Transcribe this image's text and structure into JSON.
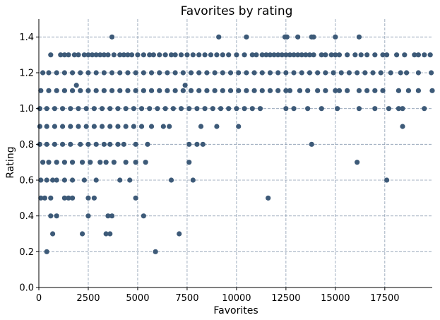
{
  "chart_data": {
    "type": "scatter",
    "title": "Favorites by rating",
    "xlabel": "Favorites",
    "ylabel": "Rating",
    "xlim": [
      0,
      19900
    ],
    "ylim": [
      0,
      1.5
    ],
    "x_ticks": [
      0,
      2500,
      5000,
      7500,
      10000,
      12500,
      15000,
      17500
    ],
    "x_tick_labels": [
      "0",
      "2500",
      "5000",
      "7500",
      "10000",
      "12500",
      "15000",
      "17500"
    ],
    "y_ticks": [
      0.0,
      0.2,
      0.4,
      0.6,
      0.8,
      1.0,
      1.2,
      1.4
    ],
    "y_tick_labels": [
      "0.0",
      "0.2",
      "0.4",
      "0.6",
      "0.8",
      "1.0",
      "1.2",
      "1.4"
    ],
    "grid": true,
    "grid_style": "dashed",
    "marker_color": "#3d5a78",
    "grid_color": "#8a9bb0",
    "series": [
      {
        "points": [
          [
            3700,
            1.4
          ],
          [
            9100,
            1.4
          ],
          [
            10500,
            1.4
          ],
          [
            12450,
            1.4
          ],
          [
            12550,
            1.4
          ],
          [
            13100,
            1.4
          ],
          [
            13800,
            1.4
          ],
          [
            13900,
            1.4
          ],
          [
            15000,
            1.4
          ],
          [
            16200,
            1.4
          ],
          [
            600,
            1.3
          ],
          [
            1100,
            1.3
          ],
          [
            1300,
            1.3
          ],
          [
            1500,
            1.3
          ],
          [
            1800,
            1.3
          ],
          [
            2000,
            1.3
          ],
          [
            2300,
            1.3
          ],
          [
            2500,
            1.3
          ],
          [
            2700,
            1.3
          ],
          [
            2900,
            1.3
          ],
          [
            3100,
            1.3
          ],
          [
            3300,
            1.3
          ],
          [
            3500,
            1.3
          ],
          [
            3800,
            1.3
          ],
          [
            4100,
            1.3
          ],
          [
            4300,
            1.3
          ],
          [
            4500,
            1.3
          ],
          [
            4700,
            1.3
          ],
          [
            5000,
            1.3
          ],
          [
            5300,
            1.3
          ],
          [
            5600,
            1.3
          ],
          [
            5800,
            1.3
          ],
          [
            6100,
            1.3
          ],
          [
            6400,
            1.3
          ],
          [
            6700,
            1.3
          ],
          [
            6900,
            1.3
          ],
          [
            7200,
            1.3
          ],
          [
            7500,
            1.3
          ],
          [
            7800,
            1.3
          ],
          [
            8100,
            1.3
          ],
          [
            8400,
            1.3
          ],
          [
            8700,
            1.3
          ],
          [
            9000,
            1.3
          ],
          [
            9300,
            1.3
          ],
          [
            9600,
            1.3
          ],
          [
            10000,
            1.3
          ],
          [
            10400,
            1.3
          ],
          [
            10800,
            1.3
          ],
          [
            11000,
            1.3
          ],
          [
            11300,
            1.3
          ],
          [
            11500,
            1.3
          ],
          [
            11700,
            1.3
          ],
          [
            11900,
            1.3
          ],
          [
            12100,
            1.3
          ],
          [
            12300,
            1.3
          ],
          [
            12500,
            1.3
          ],
          [
            12700,
            1.3
          ],
          [
            12900,
            1.3
          ],
          [
            13100,
            1.3
          ],
          [
            13300,
            1.3
          ],
          [
            13500,
            1.3
          ],
          [
            13700,
            1.3
          ],
          [
            13900,
            1.3
          ],
          [
            14300,
            1.3
          ],
          [
            14500,
            1.3
          ],
          [
            14800,
            1.3
          ],
          [
            15000,
            1.3
          ],
          [
            15200,
            1.3
          ],
          [
            15600,
            1.3
          ],
          [
            16000,
            1.3
          ],
          [
            16300,
            1.3
          ],
          [
            16600,
            1.3
          ],
          [
            17000,
            1.3
          ],
          [
            17400,
            1.3
          ],
          [
            17600,
            1.3
          ],
          [
            18100,
            1.3
          ],
          [
            18500,
            1.3
          ],
          [
            19000,
            1.3
          ],
          [
            19200,
            1.3
          ],
          [
            19500,
            1.3
          ],
          [
            19800,
            1.3
          ],
          [
            200,
            1.2
          ],
          [
            500,
            1.2
          ],
          [
            900,
            1.2
          ],
          [
            1300,
            1.2
          ],
          [
            1700,
            1.2
          ],
          [
            2100,
            1.2
          ],
          [
            2500,
            1.2
          ],
          [
            2900,
            1.2
          ],
          [
            3300,
            1.2
          ],
          [
            3700,
            1.2
          ],
          [
            4100,
            1.2
          ],
          [
            4500,
            1.2
          ],
          [
            4900,
            1.2
          ],
          [
            5300,
            1.2
          ],
          [
            5700,
            1.2
          ],
          [
            6100,
            1.2
          ],
          [
            6500,
            1.2
          ],
          [
            6900,
            1.2
          ],
          [
            7300,
            1.2
          ],
          [
            7700,
            1.2
          ],
          [
            8100,
            1.2
          ],
          [
            8500,
            1.2
          ],
          [
            8900,
            1.2
          ],
          [
            9300,
            1.2
          ],
          [
            9700,
            1.2
          ],
          [
            10100,
            1.2
          ],
          [
            10500,
            1.2
          ],
          [
            10900,
            1.2
          ],
          [
            11300,
            1.2
          ],
          [
            11700,
            1.2
          ],
          [
            12100,
            1.2
          ],
          [
            12500,
            1.2
          ],
          [
            12900,
            1.2
          ],
          [
            13300,
            1.2
          ],
          [
            13700,
            1.2
          ],
          [
            14100,
            1.2
          ],
          [
            14500,
            1.2
          ],
          [
            14900,
            1.2
          ],
          [
            15300,
            1.2
          ],
          [
            15700,
            1.2
          ],
          [
            16100,
            1.2
          ],
          [
            16500,
            1.2
          ],
          [
            16900,
            1.2
          ],
          [
            17300,
            1.2
          ],
          [
            17800,
            1.2
          ],
          [
            18300,
            1.2
          ],
          [
            18600,
            1.2
          ],
          [
            19200,
            1.2
          ],
          [
            19850,
            1.2
          ],
          [
            1900,
            1.13
          ],
          [
            7400,
            1.13
          ],
          [
            100,
            1.1
          ],
          [
            500,
            1.1
          ],
          [
            900,
            1.1
          ],
          [
            1300,
            1.1
          ],
          [
            1700,
            1.1
          ],
          [
            2100,
            1.1
          ],
          [
            2500,
            1.1
          ],
          [
            2900,
            1.1
          ],
          [
            3300,
            1.1
          ],
          [
            3700,
            1.1
          ],
          [
            4100,
            1.1
          ],
          [
            4500,
            1.1
          ],
          [
            4900,
            1.1
          ],
          [
            5300,
            1.1
          ],
          [
            5700,
            1.1
          ],
          [
            6100,
            1.1
          ],
          [
            6500,
            1.1
          ],
          [
            6900,
            1.1
          ],
          [
            7300,
            1.1
          ],
          [
            7700,
            1.1
          ],
          [
            8100,
            1.1
          ],
          [
            8500,
            1.1
          ],
          [
            8900,
            1.1
          ],
          [
            9300,
            1.1
          ],
          [
            9700,
            1.1
          ],
          [
            10100,
            1.1
          ],
          [
            10500,
            1.1
          ],
          [
            10900,
            1.1
          ],
          [
            11300,
            1.1
          ],
          [
            11700,
            1.1
          ],
          [
            12100,
            1.1
          ],
          [
            12500,
            1.1
          ],
          [
            12700,
            1.1
          ],
          [
            13200,
            1.1
          ],
          [
            13600,
            1.1
          ],
          [
            14100,
            1.1
          ],
          [
            14500,
            1.1
          ],
          [
            15000,
            1.1
          ],
          [
            15200,
            1.1
          ],
          [
            15600,
            1.1
          ],
          [
            16200,
            1.1
          ],
          [
            16600,
            1.1
          ],
          [
            17000,
            1.1
          ],
          [
            17400,
            1.1
          ],
          [
            18200,
            1.1
          ],
          [
            18700,
            1.1
          ],
          [
            19200,
            1.1
          ],
          [
            19900,
            1.1
          ],
          [
            50,
            1.0
          ],
          [
            400,
            1.0
          ],
          [
            800,
            1.0
          ],
          [
            1200,
            1.0
          ],
          [
            1600,
            1.0
          ],
          [
            2000,
            1.0
          ],
          [
            2400,
            1.0
          ],
          [
            2800,
            1.0
          ],
          [
            3200,
            1.0
          ],
          [
            3600,
            1.0
          ],
          [
            4000,
            1.0
          ],
          [
            4400,
            1.0
          ],
          [
            4800,
            1.0
          ],
          [
            5200,
            1.0
          ],
          [
            5600,
            1.0
          ],
          [
            6000,
            1.0
          ],
          [
            6400,
            1.0
          ],
          [
            6800,
            1.0
          ],
          [
            7200,
            1.0
          ],
          [
            7600,
            1.0
          ],
          [
            8000,
            1.0
          ],
          [
            8400,
            1.0
          ],
          [
            8800,
            1.0
          ],
          [
            9200,
            1.0
          ],
          [
            9600,
            1.0
          ],
          [
            10000,
            1.0
          ],
          [
            10400,
            1.0
          ],
          [
            10800,
            1.0
          ],
          [
            11200,
            1.0
          ],
          [
            12500,
            1.0
          ],
          [
            12900,
            1.0
          ],
          [
            13600,
            1.0
          ],
          [
            14300,
            1.0
          ],
          [
            15100,
            1.0
          ],
          [
            16200,
            1.0
          ],
          [
            17000,
            1.0
          ],
          [
            17700,
            1.0
          ],
          [
            18200,
            1.0
          ],
          [
            18400,
            1.0
          ],
          [
            19500,
            1.0
          ],
          [
            50,
            0.9
          ],
          [
            400,
            0.9
          ],
          [
            800,
            0.9
          ],
          [
            1200,
            0.9
          ],
          [
            1600,
            0.9
          ],
          [
            2000,
            0.9
          ],
          [
            2400,
            0.9
          ],
          [
            2800,
            0.9
          ],
          [
            3200,
            0.9
          ],
          [
            3600,
            0.9
          ],
          [
            4000,
            0.9
          ],
          [
            4400,
            0.9
          ],
          [
            4800,
            0.9
          ],
          [
            5200,
            0.9
          ],
          [
            5700,
            0.9
          ],
          [
            6300,
            0.9
          ],
          [
            6600,
            0.9
          ],
          [
            8200,
            0.9
          ],
          [
            9000,
            0.9
          ],
          [
            10100,
            0.9
          ],
          [
            18400,
            0.9
          ],
          [
            50,
            0.8
          ],
          [
            400,
            0.8
          ],
          [
            800,
            0.8
          ],
          [
            1200,
            0.8
          ],
          [
            1600,
            0.8
          ],
          [
            2100,
            0.8
          ],
          [
            2500,
            0.8
          ],
          [
            2900,
            0.8
          ],
          [
            3300,
            0.8
          ],
          [
            3600,
            0.8
          ],
          [
            4000,
            0.8
          ],
          [
            4300,
            0.8
          ],
          [
            4900,
            0.8
          ],
          [
            5500,
            0.8
          ],
          [
            7600,
            0.8
          ],
          [
            8000,
            0.8
          ],
          [
            8300,
            0.8
          ],
          [
            13800,
            0.8
          ],
          [
            200,
            0.7
          ],
          [
            500,
            0.7
          ],
          [
            900,
            0.7
          ],
          [
            1300,
            0.7
          ],
          [
            1700,
            0.7
          ],
          [
            2200,
            0.7
          ],
          [
            2600,
            0.7
          ],
          [
            3100,
            0.7
          ],
          [
            3400,
            0.7
          ],
          [
            3800,
            0.7
          ],
          [
            4400,
            0.7
          ],
          [
            4900,
            0.7
          ],
          [
            5400,
            0.7
          ],
          [
            7600,
            0.7
          ],
          [
            16100,
            0.7
          ],
          [
            100,
            0.6
          ],
          [
            400,
            0.6
          ],
          [
            700,
            0.6
          ],
          [
            900,
            0.6
          ],
          [
            1300,
            0.6
          ],
          [
            1700,
            0.6
          ],
          [
            2300,
            0.6
          ],
          [
            2900,
            0.6
          ],
          [
            4100,
            0.6
          ],
          [
            4600,
            0.6
          ],
          [
            6700,
            0.6
          ],
          [
            7800,
            0.6
          ],
          [
            17600,
            0.6
          ],
          [
            100,
            0.5
          ],
          [
            300,
            0.5
          ],
          [
            600,
            0.5
          ],
          [
            1300,
            0.5
          ],
          [
            1500,
            0.5
          ],
          [
            1700,
            0.5
          ],
          [
            2500,
            0.5
          ],
          [
            2800,
            0.5
          ],
          [
            4900,
            0.5
          ],
          [
            11600,
            0.5
          ],
          [
            600,
            0.4
          ],
          [
            900,
            0.4
          ],
          [
            2500,
            0.4
          ],
          [
            3500,
            0.4
          ],
          [
            3700,
            0.4
          ],
          [
            5300,
            0.4
          ],
          [
            700,
            0.3
          ],
          [
            2200,
            0.3
          ],
          [
            3400,
            0.3
          ],
          [
            3600,
            0.3
          ],
          [
            7100,
            0.3
          ],
          [
            400,
            0.2
          ],
          [
            5900,
            0.2
          ]
        ]
      }
    ]
  }
}
